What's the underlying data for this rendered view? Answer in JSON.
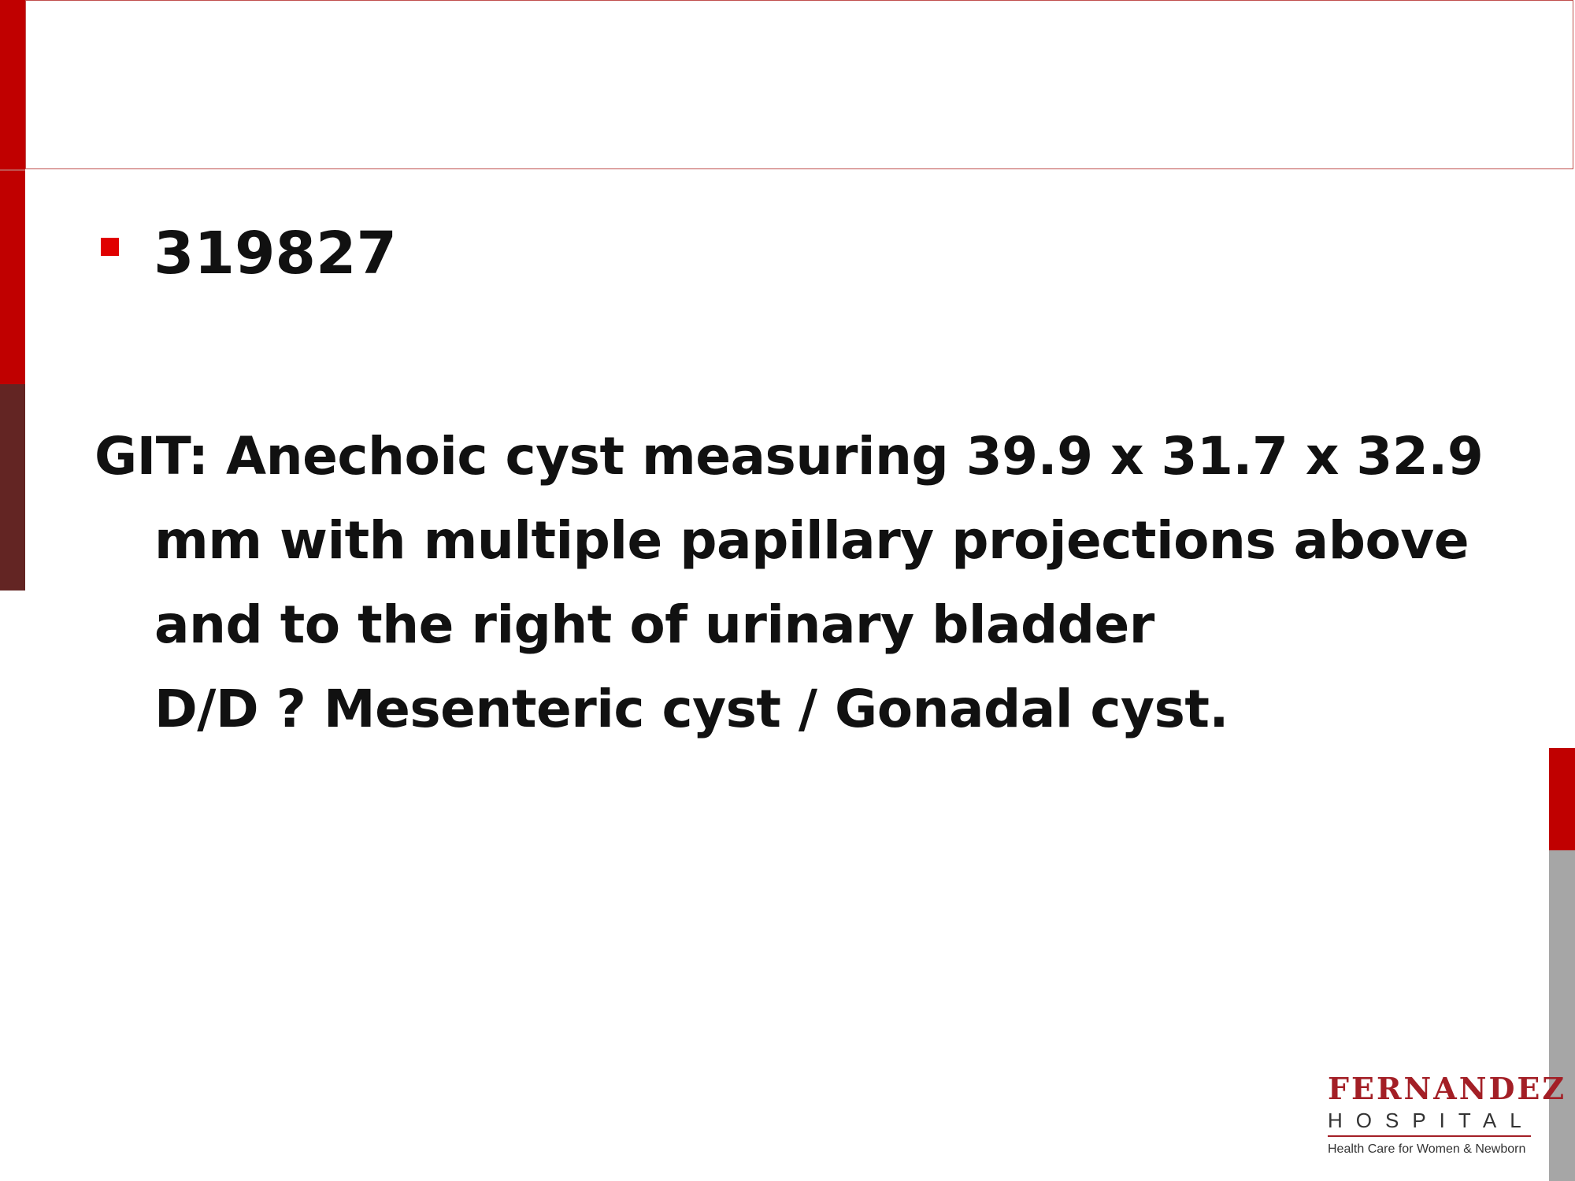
{
  "slide": {
    "title": "",
    "bullet": "319827",
    "paragraph": {
      "line1": "GIT: Anechoic cyst measuring 39.9 x 31.7 x 32.9",
      "line2": "mm with multiple papillary projections above",
      "line3": "and to the right of urinary bladder",
      "line4": "D/D ? Mesenteric cyst / Gonadal cyst."
    }
  },
  "logo": {
    "name": "FERNANDEZ",
    "subname": "HOSPITAL",
    "tagline": "Health Care for Women & Newborn"
  },
  "colors": {
    "accent_red": "#c00000",
    "accent_dark": "#632523",
    "accent_gray": "#a6a6a6",
    "bullet_red": "#e00000",
    "title_border": "#c0504d"
  }
}
